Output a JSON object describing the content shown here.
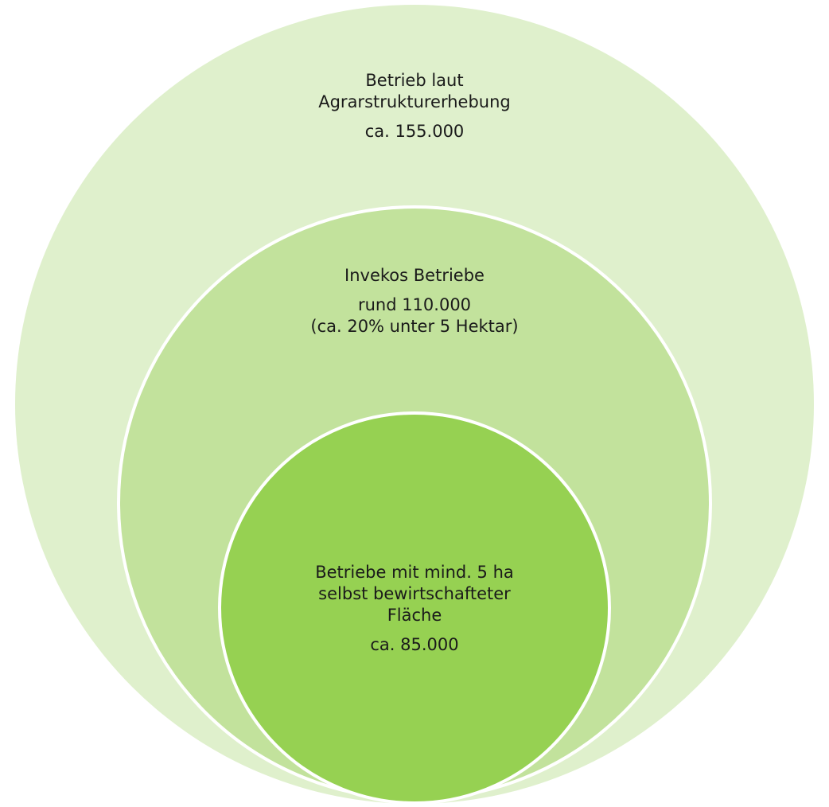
{
  "colors": {
    "outer_circle": "#dff0cc",
    "middle_circle": "#c2e29c",
    "inner_circle": "#96d152",
    "outline": "#ffffff",
    "text": "#1a1a1a"
  },
  "circles": [
    {
      "id": "outer",
      "title_lines": [
        "Betrieb laut",
        "Agrarstrukturerhebung"
      ],
      "count": "ca. 155.000"
    },
    {
      "id": "middle",
      "title_lines": [
        "Invekos Betriebe"
      ],
      "count": "rund 110.000",
      "note": "(ca. 20% unter 5 Hektar)"
    },
    {
      "id": "inner",
      "title_lines": [
        "Betriebe mit mind. 5 ha",
        "selbst bewirtschafteter",
        "Fläche"
      ],
      "count": "ca. 85.000"
    }
  ]
}
